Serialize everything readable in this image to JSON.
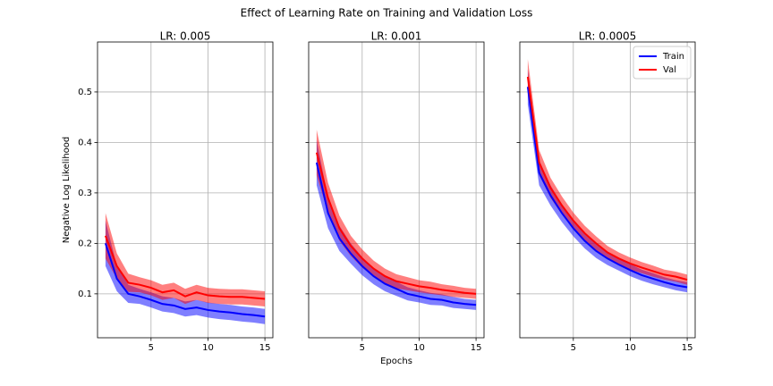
{
  "title": "Effect of Learning Rate on Training and Validation Loss",
  "chart_data": [
    {
      "type": "line",
      "title": "LR: 0.005",
      "y_label": "Negative Log Likelihood",
      "x": [
        1,
        2,
        3,
        4,
        5,
        6,
        7,
        8,
        9,
        10,
        11,
        12,
        13,
        14,
        15
      ],
      "xlim": [
        0.3,
        15.7
      ],
      "xticks": [
        5,
        10,
        15
      ],
      "ylim": [
        0.013,
        0.599
      ],
      "yticks": [
        0.1,
        0.2,
        0.3,
        0.4,
        0.5
      ],
      "grid": true,
      "series": [
        {
          "name": "Train",
          "color": "#0000ff",
          "values": [
            0.2,
            0.13,
            0.1,
            0.095,
            0.088,
            0.08,
            0.077,
            0.07,
            0.073,
            0.068,
            0.065,
            0.063,
            0.06,
            0.058,
            0.055
          ],
          "lower": [
            0.155,
            0.105,
            0.082,
            0.08,
            0.073,
            0.065,
            0.062,
            0.055,
            0.058,
            0.053,
            0.05,
            0.048,
            0.045,
            0.043,
            0.04
          ],
          "upper": [
            0.245,
            0.155,
            0.118,
            0.11,
            0.103,
            0.095,
            0.092,
            0.085,
            0.088,
            0.083,
            0.08,
            0.078,
            0.075,
            0.073,
            0.07
          ]
        },
        {
          "name": "Val",
          "color": "#ff0000",
          "values": [
            0.215,
            0.155,
            0.122,
            0.118,
            0.112,
            0.103,
            0.107,
            0.095,
            0.103,
            0.097,
            0.095,
            0.094,
            0.094,
            0.092,
            0.09
          ],
          "lower": [
            0.17,
            0.13,
            0.104,
            0.103,
            0.097,
            0.088,
            0.092,
            0.08,
            0.088,
            0.082,
            0.08,
            0.079,
            0.079,
            0.077,
            0.075
          ],
          "upper": [
            0.26,
            0.18,
            0.14,
            0.133,
            0.127,
            0.118,
            0.122,
            0.11,
            0.118,
            0.112,
            0.11,
            0.109,
            0.109,
            0.107,
            0.105
          ]
        }
      ]
    },
    {
      "type": "line",
      "title": "LR: 0.001",
      "x_label": "Epochs",
      "x": [
        1,
        2,
        3,
        4,
        5,
        6,
        7,
        8,
        9,
        10,
        11,
        12,
        13,
        14,
        15
      ],
      "xlim": [
        0.3,
        15.7
      ],
      "xticks": [
        5,
        10,
        15
      ],
      "ylim": [
        0.013,
        0.599
      ],
      "yticks": [
        0.1,
        0.2,
        0.3,
        0.4,
        0.5
      ],
      "grid": true,
      "series": [
        {
          "name": "Train",
          "color": "#0000ff",
          "values": [
            0.36,
            0.26,
            0.21,
            0.18,
            0.155,
            0.135,
            0.12,
            0.11,
            0.1,
            0.095,
            0.09,
            0.088,
            0.083,
            0.08,
            0.078
          ],
          "lower": [
            0.315,
            0.23,
            0.185,
            0.16,
            0.137,
            0.119,
            0.105,
            0.096,
            0.087,
            0.083,
            0.078,
            0.077,
            0.072,
            0.07,
            0.068
          ],
          "upper": [
            0.405,
            0.29,
            0.235,
            0.2,
            0.173,
            0.151,
            0.135,
            0.124,
            0.113,
            0.107,
            0.102,
            0.099,
            0.094,
            0.09,
            0.088
          ]
        },
        {
          "name": "Val",
          "color": "#ff0000",
          "values": [
            0.38,
            0.29,
            0.23,
            0.195,
            0.17,
            0.15,
            0.135,
            0.125,
            0.12,
            0.115,
            0.112,
            0.108,
            0.105,
            0.102,
            0.1
          ],
          "lower": [
            0.335,
            0.26,
            0.205,
            0.175,
            0.152,
            0.134,
            0.12,
            0.111,
            0.107,
            0.103,
            0.1,
            0.097,
            0.094,
            0.092,
            0.09
          ],
          "upper": [
            0.425,
            0.32,
            0.255,
            0.215,
            0.188,
            0.166,
            0.15,
            0.139,
            0.133,
            0.127,
            0.124,
            0.119,
            0.116,
            0.112,
            0.11
          ]
        }
      ]
    },
    {
      "type": "line",
      "title": "LR: 0.0005",
      "legend": "upper right",
      "x": [
        1,
        2,
        3,
        4,
        5,
        6,
        7,
        8,
        9,
        10,
        11,
        12,
        13,
        14,
        15
      ],
      "xlim": [
        0.3,
        15.7
      ],
      "xticks": [
        5,
        10,
        15
      ],
      "ylim": [
        0.013,
        0.599
      ],
      "yticks": [
        0.1,
        0.2,
        0.3,
        0.4,
        0.5
      ],
      "grid": true,
      "series": [
        {
          "name": "Train",
          "color": "#0000ff",
          "values": [
            0.51,
            0.34,
            0.295,
            0.26,
            0.23,
            0.205,
            0.185,
            0.17,
            0.158,
            0.147,
            0.137,
            0.13,
            0.123,
            0.117,
            0.113
          ],
          "lower": [
            0.475,
            0.315,
            0.275,
            0.242,
            0.214,
            0.19,
            0.171,
            0.157,
            0.146,
            0.135,
            0.126,
            0.119,
            0.113,
            0.107,
            0.103
          ],
          "upper": [
            0.545,
            0.365,
            0.315,
            0.278,
            0.246,
            0.22,
            0.199,
            0.183,
            0.17,
            0.159,
            0.148,
            0.141,
            0.133,
            0.127,
            0.123
          ]
        },
        {
          "name": "Val",
          "color": "#ff0000",
          "values": [
            0.53,
            0.36,
            0.31,
            0.275,
            0.245,
            0.22,
            0.2,
            0.182,
            0.17,
            0.16,
            0.152,
            0.145,
            0.138,
            0.134,
            0.128
          ],
          "lower": [
            0.495,
            0.335,
            0.29,
            0.257,
            0.229,
            0.205,
            0.186,
            0.169,
            0.158,
            0.148,
            0.141,
            0.134,
            0.128,
            0.124,
            0.118
          ],
          "upper": [
            0.565,
            0.385,
            0.33,
            0.293,
            0.261,
            0.235,
            0.214,
            0.195,
            0.182,
            0.172,
            0.163,
            0.156,
            0.148,
            0.144,
            0.138
          ]
        }
      ]
    }
  ]
}
